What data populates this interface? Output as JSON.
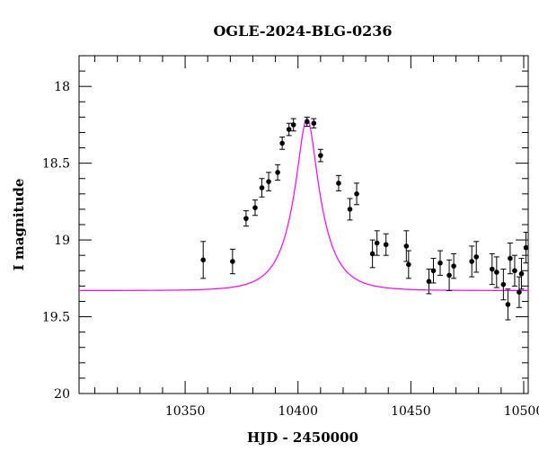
{
  "chart_data": {
    "type": "scatter",
    "title": "OGLE-2024-BLG-0236",
    "xlabel": "HJD - 2450000",
    "ylabel": "I magnitude",
    "xlim": [
      10303,
      10502
    ],
    "ylim": [
      20,
      17.8
    ],
    "y_inverted": true,
    "x_ticks": [
      10350,
      10400,
      10450,
      10500
    ],
    "x_tick_labels": [
      "10350",
      "10400",
      "10450",
      "10500"
    ],
    "y_ticks": [
      18,
      18.5,
      19,
      19.5,
      20
    ],
    "y_tick_labels": [
      "18",
      "18.5",
      "19",
      "19.5",
      "20"
    ],
    "grid": false,
    "colors": {
      "model": "#ff00ff",
      "points": "#000000"
    },
    "model": {
      "name": "",
      "t0": 10404,
      "u0": 0.3,
      "tE": 13,
      "baseline": 19.33,
      "fs": 0.74
    },
    "series": [
      {
        "name": "",
        "points": [
          {
            "x": 10358,
            "y": 19.13,
            "err": 0.12
          },
          {
            "x": 10371,
            "y": 19.14,
            "err": 0.08
          },
          {
            "x": 10377,
            "y": 18.86,
            "err": 0.05
          },
          {
            "x": 10381,
            "y": 18.79,
            "err": 0.05
          },
          {
            "x": 10384,
            "y": 18.66,
            "err": 0.06
          },
          {
            "x": 10387,
            "y": 18.62,
            "err": 0.06
          },
          {
            "x": 10391,
            "y": 18.56,
            "err": 0.05
          },
          {
            "x": 10393,
            "y": 18.37,
            "err": 0.04
          },
          {
            "x": 10396,
            "y": 18.28,
            "err": 0.04
          },
          {
            "x": 10398,
            "y": 18.25,
            "err": 0.04
          },
          {
            "x": 10404,
            "y": 18.23,
            "err": 0.03
          },
          {
            "x": 10407,
            "y": 18.24,
            "err": 0.03
          },
          {
            "x": 10410,
            "y": 18.45,
            "err": 0.04
          },
          {
            "x": 10418,
            "y": 18.63,
            "err": 0.05
          },
          {
            "x": 10423,
            "y": 18.8,
            "err": 0.07
          },
          {
            "x": 10426,
            "y": 18.7,
            "err": 0.07
          },
          {
            "x": 10433,
            "y": 19.09,
            "err": 0.09
          },
          {
            "x": 10435,
            "y": 19.02,
            "err": 0.08
          },
          {
            "x": 10439,
            "y": 19.03,
            "err": 0.07
          },
          {
            "x": 10448,
            "y": 19.04,
            "err": 0.1
          },
          {
            "x": 10449,
            "y": 19.16,
            "err": 0.09
          },
          {
            "x": 10458,
            "y": 19.27,
            "err": 0.08
          },
          {
            "x": 10460,
            "y": 19.2,
            "err": 0.08
          },
          {
            "x": 10463,
            "y": 19.15,
            "err": 0.08
          },
          {
            "x": 10467,
            "y": 19.23,
            "err": 0.1
          },
          {
            "x": 10469,
            "y": 19.17,
            "err": 0.08
          },
          {
            "x": 10477,
            "y": 19.14,
            "err": 0.1
          },
          {
            "x": 10479,
            "y": 19.11,
            "err": 0.1
          },
          {
            "x": 10486,
            "y": 19.19,
            "err": 0.1
          },
          {
            "x": 10488,
            "y": 19.21,
            "err": 0.1
          },
          {
            "x": 10491,
            "y": 19.29,
            "err": 0.1
          },
          {
            "x": 10493,
            "y": 19.42,
            "err": 0.1
          },
          {
            "x": 10494,
            "y": 19.12,
            "err": 0.1
          },
          {
            "x": 10496,
            "y": 19.2,
            "err": 0.1
          },
          {
            "x": 10498,
            "y": 19.34,
            "err": 0.1
          },
          {
            "x": 10499,
            "y": 19.22,
            "err": 0.1
          },
          {
            "x": 10501,
            "y": 19.05,
            "err": 0.1
          }
        ]
      }
    ]
  }
}
